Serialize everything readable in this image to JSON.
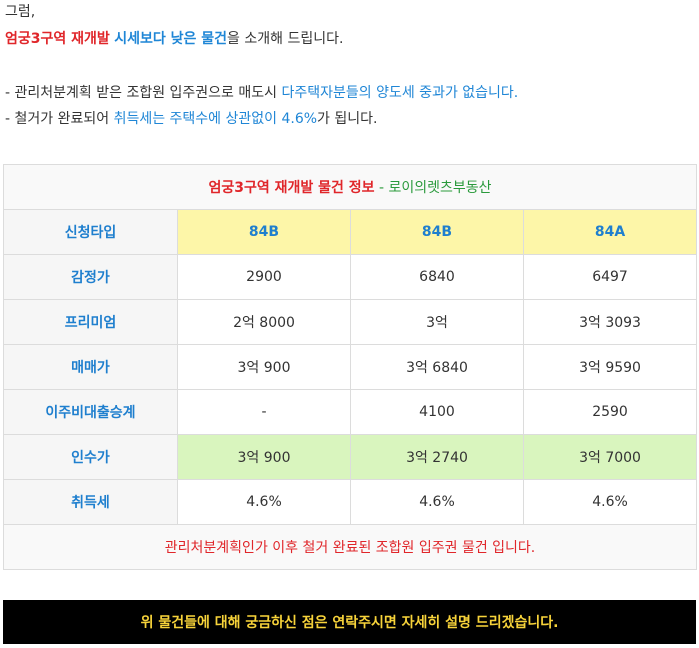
{
  "intro": {
    "greeting": "그럼,",
    "line2": {
      "part1": "엄궁3구역 재개발",
      "part2": "시세보다 낮은 물건",
      "part3": "을 소개해 드립니다."
    },
    "bullet1": {
      "text": "- 관리처분계획 받은 조합원 입주권으로 매도시 ",
      "highlight": "다주택자분들의 양도세 중과가 없습니다."
    },
    "bullet2": {
      "part1": "- 철거가 완료되어 ",
      "highlight": "취득세는 주택수에 상관없이 4.6%",
      "part2": "가 됩니다."
    }
  },
  "table": {
    "title": {
      "main": "엄궁3구역 재개발 물건 정보",
      "sep": " - ",
      "source": "로이의렛츠부동산"
    },
    "rows": [
      {
        "label": "신청타입",
        "values": [
          "84B",
          "84B",
          "84A"
        ]
      },
      {
        "label": "감정가",
        "values": [
          "2900",
          "6840",
          "6497"
        ]
      },
      {
        "label": "프리미엄",
        "values": [
          "2억 8000",
          "3억",
          "3억 3093"
        ]
      },
      {
        "label": "매매가",
        "values": [
          "3억 900",
          "3억 6840",
          "3억 9590"
        ]
      },
      {
        "label": "이주비대출승계",
        "values": [
          "-",
          "4100",
          "2590"
        ]
      },
      {
        "label": "인수가",
        "values": [
          "3억 900",
          "3억 2740",
          "3억 7000"
        ]
      },
      {
        "label": "취득세",
        "values": [
          "4.6%",
          "4.6%",
          "4.6%"
        ]
      }
    ],
    "footer": "관리처분계획인가 이후 철거 완료된 조합원 입주권 물건 입니다."
  },
  "banner": "위 물건들에 대해 궁금하신 점은 연락주시면 자세히 설명 드리겠습니다.",
  "colors": {
    "accent_red": "#e0262a",
    "accent_blue": "#1f86d6",
    "type_row_yellow": "#fdf6a8",
    "price_row_green": "#d9f5be",
    "banner_bg": "#000000",
    "banner_text": "#f7d33a"
  }
}
